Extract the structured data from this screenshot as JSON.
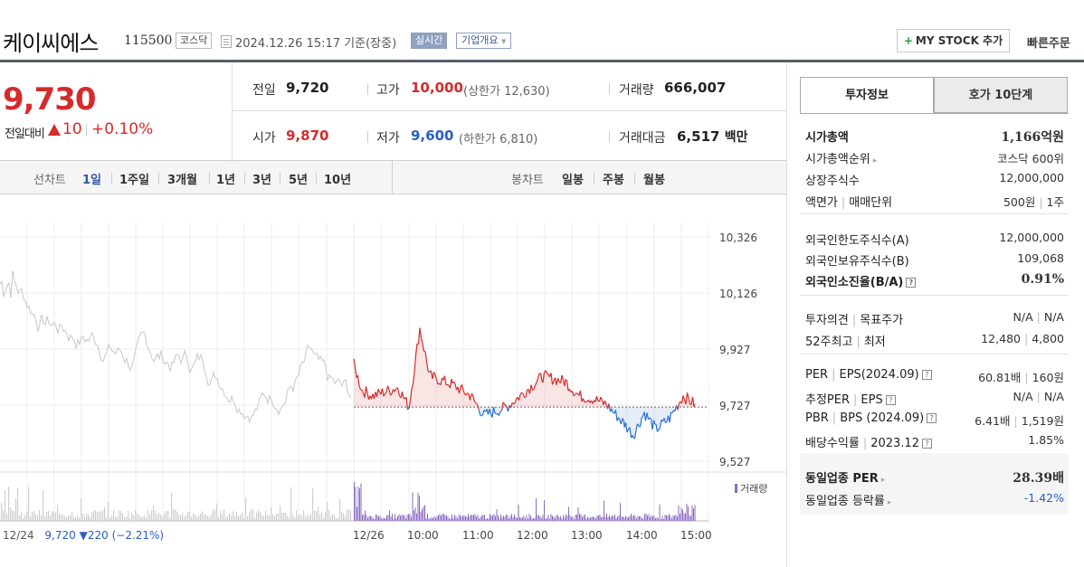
{
  "stock": {
    "name": "케이씨에스",
    "code": "115500",
    "market": "코스닥",
    "datetime": "2024.12.26 15:17",
    "basis": "기준(장중)",
    "realtime_label": "실시간",
    "company_label": "기업개요",
    "company_arrow": "▼"
  },
  "header": {
    "mystock_plus": "+",
    "mystock_label": "MY STOCK 추가",
    "quick_order": "빠른주문"
  },
  "price": {
    "current": "9,730",
    "diff_label": "전일대비",
    "diff_value": "10",
    "diff_rate": "+0.10%",
    "diff_direction": "up"
  },
  "quote": {
    "prev_close_label": "전일",
    "prev_close": "9,720",
    "high_label": "고가",
    "high": "10,000",
    "upper_limit": "(상한가 12,630)",
    "volume_label": "거래량",
    "volume": "666,007",
    "open_label": "시가",
    "open": "9,870",
    "low_label": "저가",
    "low": "9,600",
    "lower_limit": "(하한가 6,810)",
    "amount_label": "거래대금",
    "amount": "6,517",
    "amount_unit": "백만"
  },
  "chart_tabs": {
    "line_label": "선차트",
    "periods": [
      "1일",
      "1주일",
      "3개월",
      "1년",
      "3년",
      "5년",
      "10년"
    ],
    "active_period": "1일",
    "candle_label": "봉차트",
    "candles": [
      "일봉",
      "주봉",
      "월봉"
    ]
  },
  "chart_data": {
    "type": "line",
    "y_ticks": [
      "10,326",
      "10,126",
      "9,927",
      "9,727",
      "9,527"
    ],
    "x_ticks": [
      "12/26",
      "10:00",
      "11:00",
      "12:00",
      "13:00",
      "14:00",
      "15:00"
    ],
    "ylim": [
      9527,
      10326
    ],
    "reference_price": 9720,
    "volume_legend": "거래량",
    "prev_day_summary": {
      "date": "12/24",
      "price": "9,720",
      "change": "220",
      "change_rate": "(−2.21%)"
    },
    "colors": {
      "up": "#d52b2b",
      "down": "#2a6fd1",
      "prev": "#c8c8c8",
      "volume": "#8a6ac0",
      "volume_prev": "#cfcfcf"
    }
  },
  "right_panel": {
    "tabs": [
      "투자정보",
      "호가 10단계"
    ],
    "market_cap_label": "시가총액",
    "market_cap": "1,166억원",
    "rank_label": "시가총액순위",
    "rank": "코스닥 600위",
    "listed_label": "상장주식수",
    "listed": "12,000,000",
    "par_label": "액면가",
    "trade_unit_label": "매매단위",
    "par": "500원",
    "trade_unit": "1주",
    "foreign_limit_label": "외국인한도주식수(A)",
    "foreign_limit": "12,000,000",
    "foreign_hold_label": "외국인보유주식수(B)",
    "foreign_hold": "109,068",
    "foreign_ratio_label": "외국인소진율(B/A)",
    "foreign_ratio": "0.91%",
    "opinion_label": "투자의견",
    "target_label": "목표주가",
    "opinion": "N/A",
    "target": "N/A",
    "high52_label": "52주최고",
    "low52_label": "최저",
    "high52": "12,480",
    "low52": "4,800",
    "per_label": "PER",
    "eps_label": "EPS(2024.09)",
    "per": "60.81배",
    "eps": "160원",
    "est_per_label": "추정PER",
    "est_eps_label": "EPS",
    "est_per": "N/A",
    "est_eps": "N/A",
    "pbr_label": "PBR",
    "bps_label": "BPS (2024.09)",
    "pbr": "6.41배",
    "bps": "1,519원",
    "dividend_label": "배당수익률",
    "dividend_date": "2023.12",
    "dividend": "1.85%",
    "sector_per_label": "동일업종 PER",
    "sector_per": "28.39배",
    "sector_rate_label": "동일업종 등락률",
    "sector_rate": "-1.42%"
  }
}
